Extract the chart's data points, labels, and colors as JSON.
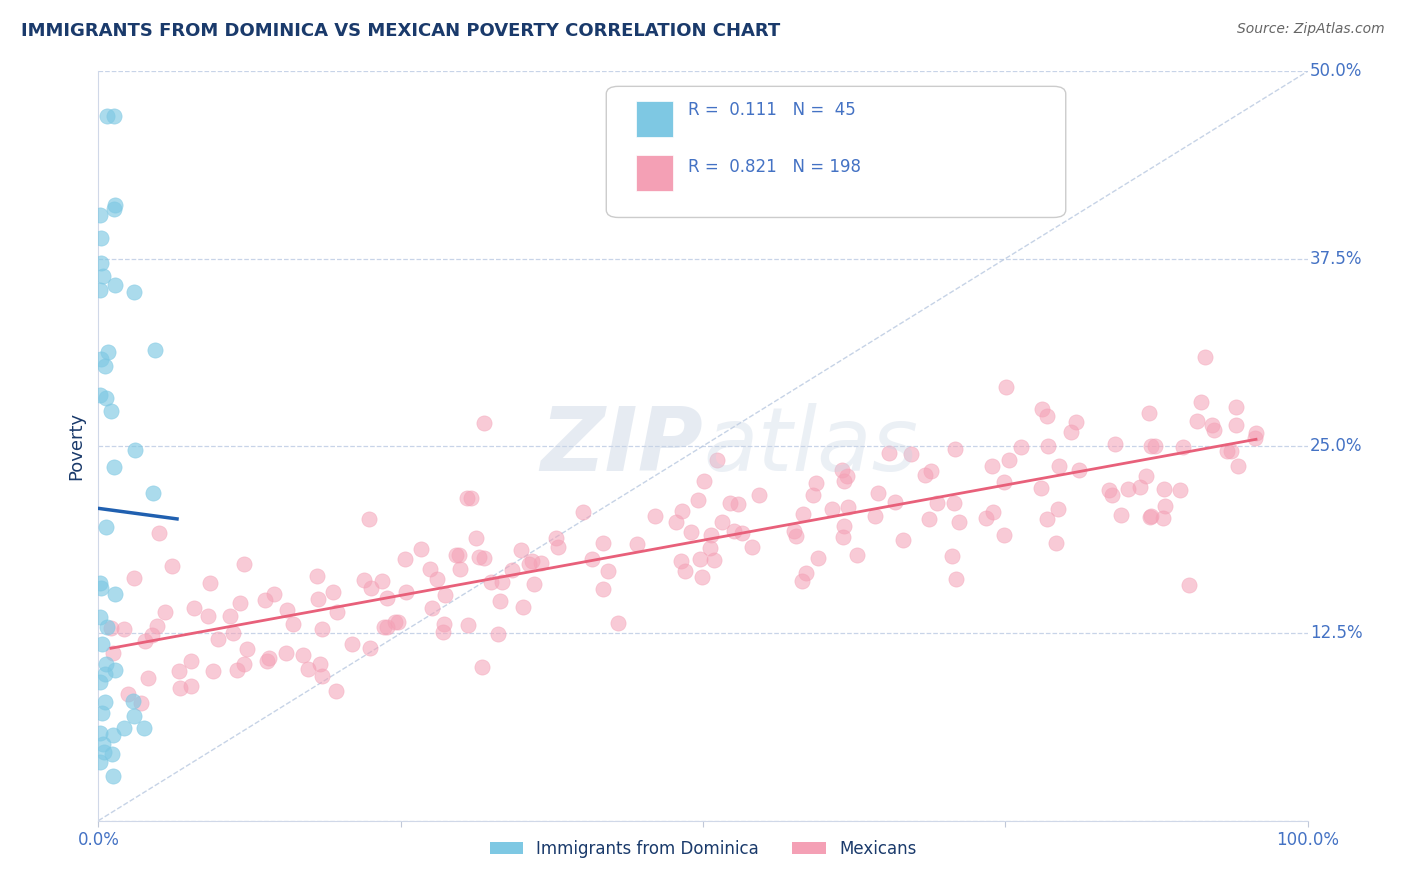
{
  "title": "IMMIGRANTS FROM DOMINICA VS MEXICAN POVERTY CORRELATION CHART",
  "source": "Source: ZipAtlas.com",
  "ylabel": "Poverty",
  "xlim": [
    0,
    1
  ],
  "ylim": [
    0,
    0.5
  ],
  "yticks": [
    0.0,
    0.125,
    0.25,
    0.375,
    0.5
  ],
  "ytick_labels": [
    "",
    "12.5%",
    "25.0%",
    "37.5%",
    "50.0%"
  ],
  "xticks": [
    0.0,
    0.25,
    0.5,
    0.75,
    1.0
  ],
  "xtick_labels": [
    "0.0%",
    "",
    "",
    "",
    "100.0%"
  ],
  "blue_R": 0.111,
  "blue_N": 45,
  "pink_R": 0.821,
  "pink_N": 198,
  "blue_color": "#7ec8e3",
  "pink_color": "#f4a0b5",
  "blue_line_color": "#2060b0",
  "pink_line_color": "#e8607a",
  "title_color": "#1a3a6b",
  "axis_label_color": "#1a3a6b",
  "tick_color": "#4472c4",
  "background_color": "#ffffff",
  "grid_color": "#c8d4e8",
  "legend_label_blue": "Immigrants from Dominica",
  "legend_label_pink": "Mexicans"
}
